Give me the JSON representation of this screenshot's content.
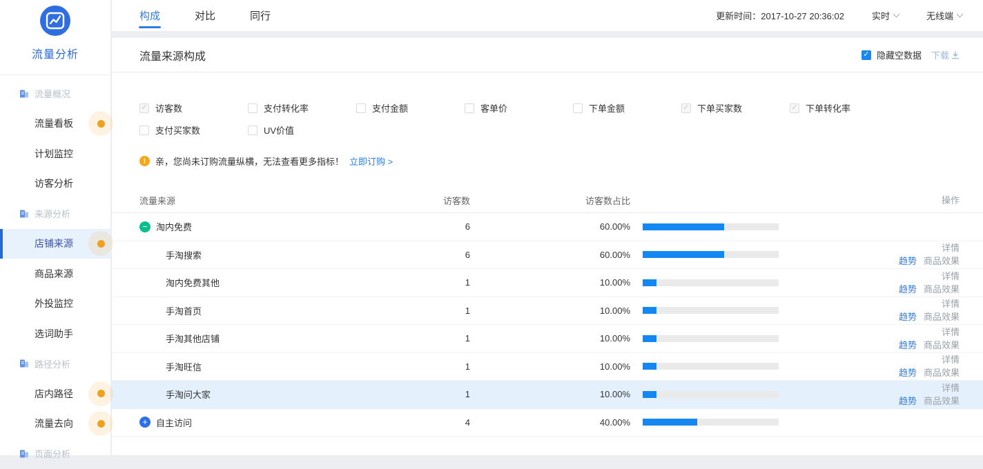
{
  "sidebar": {
    "title": "流量分析",
    "nav": [
      {
        "label": "流量概况",
        "type": "section"
      },
      {
        "label": "流量看板",
        "type": "item",
        "badge": true
      },
      {
        "label": "计划监控",
        "type": "item"
      },
      {
        "label": "访客分析",
        "type": "item"
      },
      {
        "label": "来源分析",
        "type": "section"
      },
      {
        "label": "店铺来源",
        "type": "item",
        "active": true,
        "badge": true
      },
      {
        "label": "商品来源",
        "type": "item"
      },
      {
        "label": "外投监控",
        "type": "item"
      },
      {
        "label": "选词助手",
        "type": "item"
      },
      {
        "label": "路径分析",
        "type": "section"
      },
      {
        "label": "店内路径",
        "type": "item",
        "badge": true
      },
      {
        "label": "流量去向",
        "type": "item",
        "badge": true
      },
      {
        "label": "页面分析",
        "type": "section"
      }
    ]
  },
  "header": {
    "tabs": [
      {
        "label": "构成",
        "active": true
      },
      {
        "label": "对比",
        "active": false
      },
      {
        "label": "同行",
        "active": false
      }
    ],
    "update_time": "更新时间：2017-10-27 20:36:02",
    "realtime_label": "实时",
    "device_label": "无线端"
  },
  "panel": {
    "title": "流量来源构成",
    "hide_empty_label": "隐藏空数据",
    "hide_empty_checked": true,
    "download_label": "下载",
    "notice": {
      "text": "亲，您尚未订购流量纵横，无法查看更多指标！",
      "link": "立即订购 >"
    }
  },
  "metrics": {
    "items": [
      {
        "label": "访客数",
        "checked": true,
        "disabled": true
      },
      {
        "label": "支付转化率",
        "checked": false
      },
      {
        "label": "支付金额",
        "checked": false
      },
      {
        "label": "客单价",
        "checked": false
      },
      {
        "label": "下单金额",
        "checked": false
      },
      {
        "label": "下单买家数",
        "checked": true,
        "disabled": true
      },
      {
        "label": "下单转化率",
        "checked": true,
        "disabled": true
      },
      {
        "label": "支付买家数",
        "checked": false
      },
      {
        "label": "UV价值",
        "checked": false
      }
    ]
  },
  "table": {
    "columns": {
      "source": "流量来源",
      "visitors": "访客数",
      "ratio": "访客数占比",
      "actions": "操作"
    },
    "action_labels": {
      "detail": "详情",
      "trend": "趋势",
      "effect": "商品效果"
    },
    "rows": [
      {
        "name": "淘内免费",
        "visitors": "6",
        "ratio": "60.00%",
        "pct": 60,
        "level": 0,
        "toggle": "collapse"
      },
      {
        "name": "手淘搜索",
        "visitors": "6",
        "ratio": "60.00%",
        "pct": 60,
        "level": 1
      },
      {
        "name": "淘内免费其他",
        "visitors": "1",
        "ratio": "10.00%",
        "pct": 10,
        "level": 1
      },
      {
        "name": "手淘首页",
        "visitors": "1",
        "ratio": "10.00%",
        "pct": 10,
        "level": 1
      },
      {
        "name": "手淘其他店铺",
        "visitors": "1",
        "ratio": "10.00%",
        "pct": 10,
        "level": 1
      },
      {
        "name": "手淘旺信",
        "visitors": "1",
        "ratio": "10.00%",
        "pct": 10,
        "level": 1
      },
      {
        "name": "手淘问大家",
        "visitors": "1",
        "ratio": "10.00%",
        "pct": 10,
        "level": 1,
        "highlighted": true
      },
      {
        "name": "自主访问",
        "visitors": "4",
        "ratio": "40.00%",
        "pct": 40,
        "level": 0,
        "toggle": "expand"
      }
    ]
  },
  "colors": {
    "primary_blue": "#1788f0",
    "active_tab_blue": "#2f7de0",
    "bar_fill": "#1387f2",
    "bar_track": "#eaeaea",
    "collapse_green": "#0abd8c",
    "expand_blue": "#2a6ee8",
    "badge_orange": "#f0a11c",
    "highlight_row": "#e4f0fc",
    "sidebar_active_bg": "#e8f2fd"
  }
}
